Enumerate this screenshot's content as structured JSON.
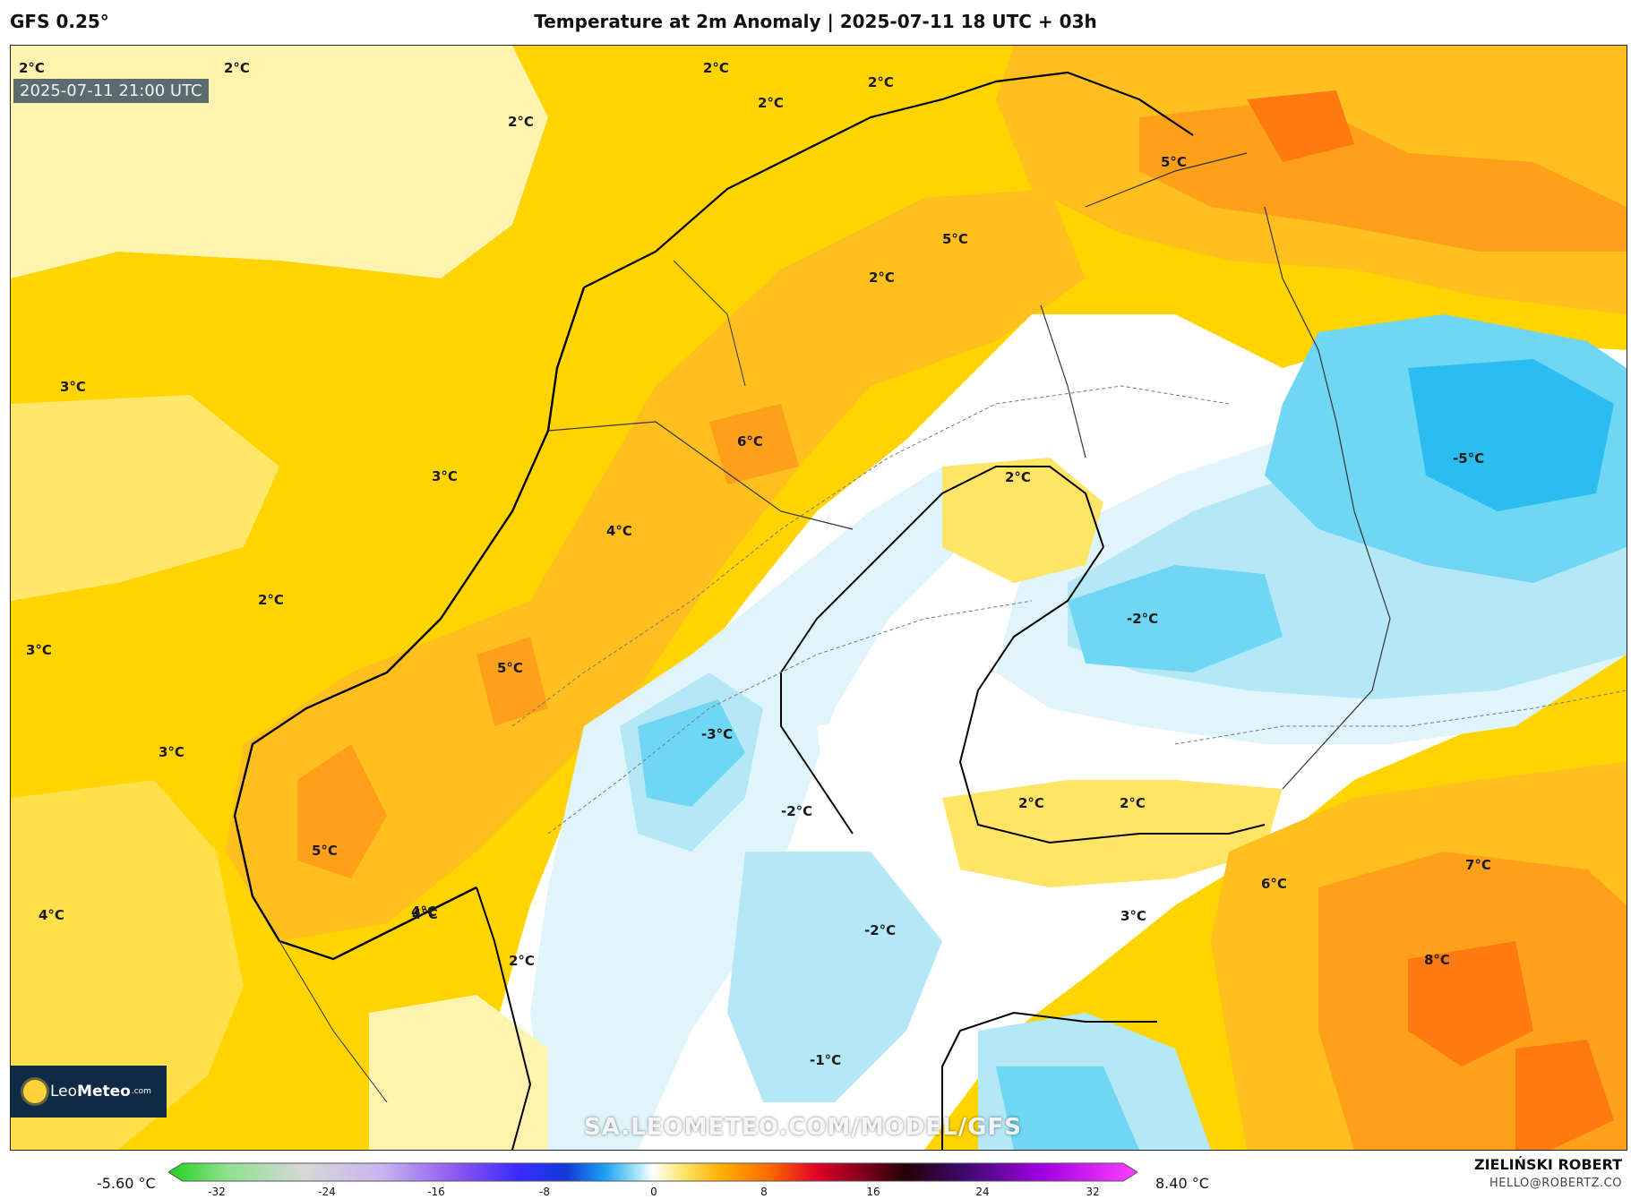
{
  "header": {
    "model": "GFS 0.25°",
    "title": "Temperature at 2m Anomaly | 2025-07-11 18 UTC + 03h"
  },
  "map": {
    "valid_time": "2025-07-11 21:00 UTC",
    "watermark": "SA.LEOMETEO.COM/MODEL/GFS",
    "labels": [
      "2°C",
      "2°C",
      "2°C",
      "2°C",
      "2°C",
      "2°C",
      "3°C",
      "3°C",
      "2°C",
      "3°C",
      "3°C",
      "4°C",
      "5°C",
      "4°C",
      "6°C",
      "4°C",
      "5°C",
      "5°C",
      "2°C",
      "5°C",
      "-5°C",
      "-2°C",
      "-3°C",
      "-2°C",
      "2°C",
      "2°C",
      "7°C",
      "6°C",
      "3°C",
      "8°C",
      "-2°C",
      "-1°C",
      "4°C",
      "2°C",
      "2°C"
    ]
  },
  "logo": {
    "part1": "Leo",
    "part2": "Meteo",
    "part3": ".com"
  },
  "legend": {
    "min_label": "-5.60 °C",
    "max_label": "8.40 °C",
    "ticks": [
      "-32",
      "-24",
      "-16",
      "-8",
      "0",
      "8",
      "16",
      "24",
      "32"
    ]
  },
  "credits": {
    "author": "ZIELIŃSKI ROBERT",
    "email": "HELLO@ROBERTZ.CO"
  },
  "colors": {
    "warm_pale": "#fff3b0",
    "warm_yellow": "#ffd400",
    "warm_gold": "#ffbf1f",
    "warm_orange": "#ffa01a",
    "warm_deep": "#ff7a10",
    "neutral": "#ffffff",
    "cold_pale": "#dff4fb",
    "cold_light": "#b5e8f7",
    "cold_mid": "#6fd6f3",
    "cold_strong": "#2bbcf0"
  }
}
